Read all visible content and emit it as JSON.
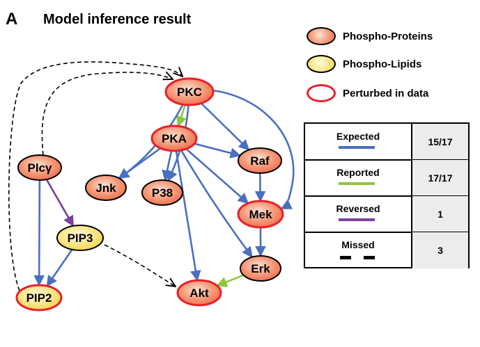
{
  "header": {
    "panel_letter": "A",
    "title": "Model inference result"
  },
  "legend": {
    "items": [
      {
        "label": "Phospho-Proteins",
        "kind": "protein"
      },
      {
        "label": "Phospho-Lipids",
        "kind": "lipid"
      },
      {
        "label": "Perturbed in data",
        "kind": "perturbed"
      }
    ]
  },
  "colors": {
    "protein_fill": "#f06a4a",
    "lipid_fill": "#f5d24a",
    "perturbed_border": "#e8202a",
    "expected_edge": "#4a6fc0",
    "reported_edge": "#8dc63f",
    "reversed_edge": "#7b3f9e",
    "missed_edge": "#000000"
  },
  "summary": {
    "rows": [
      {
        "label": "Expected",
        "value": "15/17",
        "style": "expected"
      },
      {
        "label": "Reported",
        "value": "17/17",
        "style": "reported"
      },
      {
        "label": "Reversed",
        "value": "1",
        "style": "reversed"
      },
      {
        "label": "Missed",
        "value": "3",
        "style": "missed"
      }
    ]
  },
  "network": {
    "nodes": [
      {
        "id": "PKC",
        "label": "PKC",
        "kind": "protein",
        "perturbed": true
      },
      {
        "id": "PKA",
        "label": "PKA",
        "kind": "protein",
        "perturbed": true
      },
      {
        "id": "Raf",
        "label": "Raf",
        "kind": "protein",
        "perturbed": false
      },
      {
        "id": "Jnk",
        "label": "Jnk",
        "kind": "protein",
        "perturbed": false
      },
      {
        "id": "P38",
        "label": "P38",
        "kind": "protein",
        "perturbed": false
      },
      {
        "id": "Mek",
        "label": "Mek",
        "kind": "protein",
        "perturbed": true
      },
      {
        "id": "Erk",
        "label": "Erk",
        "kind": "protein",
        "perturbed": false
      },
      {
        "id": "Akt",
        "label": "Akt",
        "kind": "protein",
        "perturbed": true
      },
      {
        "id": "Plcg",
        "label": "Plcγ",
        "kind": "protein",
        "perturbed": false
      },
      {
        "id": "PIP3",
        "label": "PIP3",
        "kind": "lipid",
        "perturbed": false
      },
      {
        "id": "PIP2",
        "label": "PIP2",
        "kind": "lipid",
        "perturbed": true
      }
    ],
    "edges": [
      {
        "from": "PKC",
        "to": "PKA",
        "type": "reported"
      },
      {
        "from": "PKC",
        "to": "Raf",
        "type": "expected"
      },
      {
        "from": "PKC",
        "to": "Mek",
        "type": "expected"
      },
      {
        "from": "PKC",
        "to": "Jnk",
        "type": "expected"
      },
      {
        "from": "PKC",
        "to": "P38",
        "type": "expected"
      },
      {
        "from": "PKA",
        "to": "Jnk",
        "type": "expected"
      },
      {
        "from": "PKA",
        "to": "P38",
        "type": "expected"
      },
      {
        "from": "PKA",
        "to": "Raf",
        "type": "expected"
      },
      {
        "from": "PKA",
        "to": "Mek",
        "type": "expected"
      },
      {
        "from": "PKA",
        "to": "Erk",
        "type": "expected"
      },
      {
        "from": "PKA",
        "to": "Akt",
        "type": "expected"
      },
      {
        "from": "Raf",
        "to": "Mek",
        "type": "expected"
      },
      {
        "from": "Mek",
        "to": "Erk",
        "type": "expected"
      },
      {
        "from": "Erk",
        "to": "Akt",
        "type": "reported"
      },
      {
        "from": "Plcg",
        "to": "PIP3",
        "type": "reversed"
      },
      {
        "from": "Plcg",
        "to": "PIP2",
        "type": "expected"
      },
      {
        "from": "PIP3",
        "to": "PIP2",
        "type": "expected"
      },
      {
        "from": "Plcg",
        "to": "PKC",
        "type": "missed"
      },
      {
        "from": "PIP2",
        "to": "PKC",
        "type": "missed"
      },
      {
        "from": "PIP3",
        "to": "Akt",
        "type": "missed"
      }
    ]
  }
}
